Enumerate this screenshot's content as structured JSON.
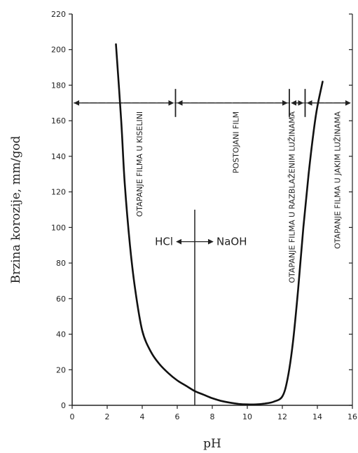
{
  "chart_data": {
    "type": "line",
    "title": "",
    "xlabel": "pH",
    "ylabel": "Brzina korozije, mm/god",
    "xlim": [
      0,
      16
    ],
    "ylim": [
      0,
      220
    ],
    "x_ticks": [
      0,
      2,
      4,
      6,
      8,
      10,
      12,
      14,
      16
    ],
    "y_ticks": [
      0,
      20,
      40,
      60,
      80,
      100,
      120,
      140,
      160,
      180,
      200,
      220
    ],
    "grid": false,
    "series": [
      {
        "x": [
          2.5,
          2.8,
          3.0,
          3.3,
          3.6,
          4.0,
          4.5,
          5.0,
          5.5,
          6.0,
          6.5,
          7.0,
          7.5,
          8.0,
          8.5,
          9.0,
          9.5,
          10.0,
          10.5,
          11.0,
          11.5,
          12.0,
          12.3,
          12.6,
          12.9,
          13.2,
          13.5,
          13.8,
          14.0,
          14.3
        ],
        "y": [
          203,
          160,
          125,
          90,
          65,
          42,
          30,
          23,
          18,
          14,
          11,
          8,
          6,
          4,
          2.5,
          1.5,
          0.8,
          0.5,
          0.5,
          1,
          2,
          5,
          15,
          35,
          65,
          100,
          130,
          155,
          168,
          182
        ]
      }
    ],
    "regions": [
      {
        "label": "OTAPANJE FILMA U KISELINI",
        "x": 4.0
      },
      {
        "label": "POSTOJANI FILM",
        "x": 9.5
      },
      {
        "label": "OTAPANJE FILMA U RAZBLAŽENIM LUŽINAMA",
        "x": 12.7
      },
      {
        "label": "OTAPANJE FILMA U JAKIM LUŽINAMA",
        "x": 15.3
      }
    ],
    "region_boundaries": [
      0,
      5.9,
      12.4,
      13.3,
      16
    ],
    "arrow_line_y": 170,
    "vertical_line": {
      "x": 7,
      "y_top": 110
    },
    "acid_base": {
      "left": "HCl",
      "right": "NaOH",
      "y": 92
    }
  }
}
